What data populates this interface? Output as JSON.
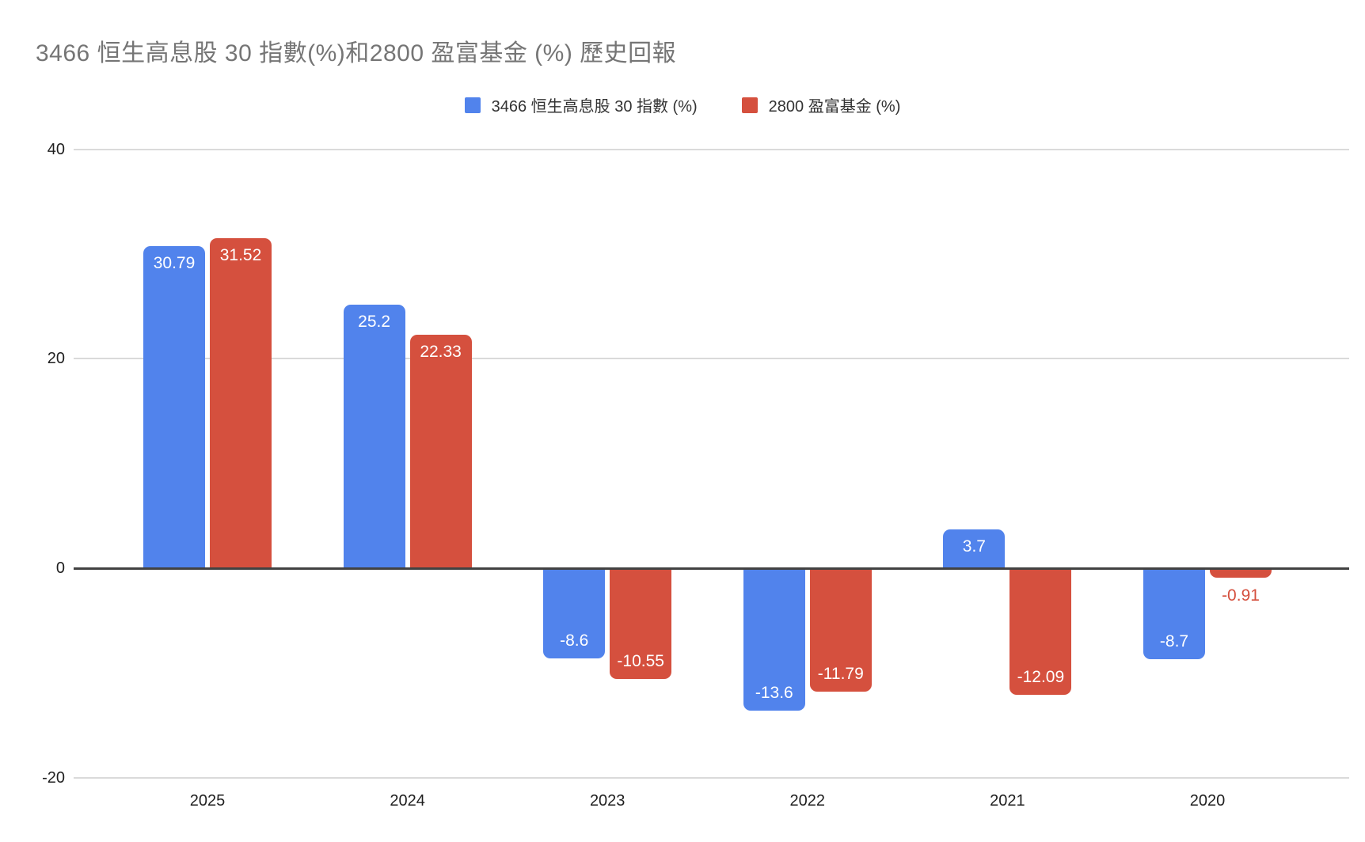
{
  "title": "3466 恒生高息股 30 指數(%)和2800 盈富基金 (%) 歷史回報",
  "legend": {
    "items": [
      {
        "label": "3466 恒生高息股 30 指數 (%)",
        "color": "#5183EC"
      },
      {
        "label": "2800 盈富基金 (%)",
        "color": "#D5503E"
      }
    ]
  },
  "chart_data": {
    "type": "bar",
    "title": "3466 恒生高息股 30 指數(%)和2800 盈富基金 (%) 歷史回報",
    "categories": [
      "2025",
      "2024",
      "2023",
      "2022",
      "2021",
      "2020"
    ],
    "series": [
      {
        "name": "3466 恒生高息股 30 指數 (%)",
        "color": "#5183EC",
        "values": [
          30.79,
          25.2,
          -8.6,
          -13.6,
          3.7,
          -8.7
        ]
      },
      {
        "name": "2800 盈富基金 (%)",
        "color": "#D5503E",
        "values": [
          31.52,
          22.33,
          -10.55,
          -11.79,
          -12.09,
          -0.91
        ]
      }
    ],
    "ylim": [
      -20,
      40
    ],
    "yticks": [
      40,
      20,
      0,
      -20
    ],
    "grid": true,
    "legend_position": "top",
    "zero_line": true
  }
}
